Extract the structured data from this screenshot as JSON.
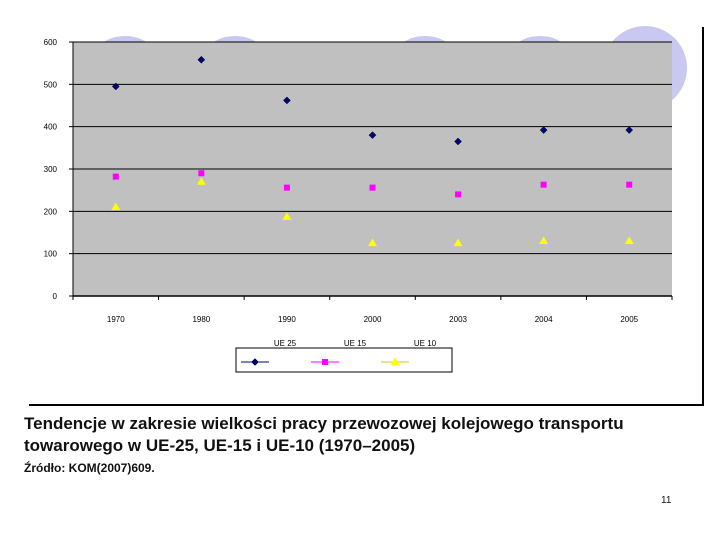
{
  "caption": "Tendencje w zakresie wielkości pracy przewozowej kolejowego transportu towarowego w UE-25, UE-15 i UE-10 (1970–2005)",
  "source": "Źródło: KOM(2007)609.",
  "page_number": "11",
  "colors": {
    "plot_bg": "#c0c0c0",
    "deco_circle": "#c8c8f0",
    "ue25": "#000080",
    "ue15": "#ff00ff",
    "ue10": "#ffff00"
  },
  "chart_data": {
    "type": "scatter",
    "categories": [
      "1970",
      "1980",
      "1990",
      "2000",
      "2003",
      "2004",
      "2005"
    ],
    "ylim": [
      0,
      600
    ],
    "yticks": [
      0,
      100,
      200,
      300,
      400,
      500,
      600
    ],
    "grid": true,
    "legend_position": "bottom",
    "series": [
      {
        "name": "UE25",
        "marker": "diamond",
        "color": "#000080",
        "values": [
          495,
          558,
          462,
          380,
          365,
          392,
          392
        ]
      },
      {
        "name": "UE15",
        "marker": "square",
        "color": "#ff00ff",
        "values": [
          282,
          290,
          256,
          256,
          240,
          263,
          263
        ]
      },
      {
        "name": "UE10",
        "marker": "triangle",
        "color": "#ffff00",
        "values": [
          210,
          270,
          187,
          125,
          125,
          130,
          130
        ]
      }
    ]
  }
}
